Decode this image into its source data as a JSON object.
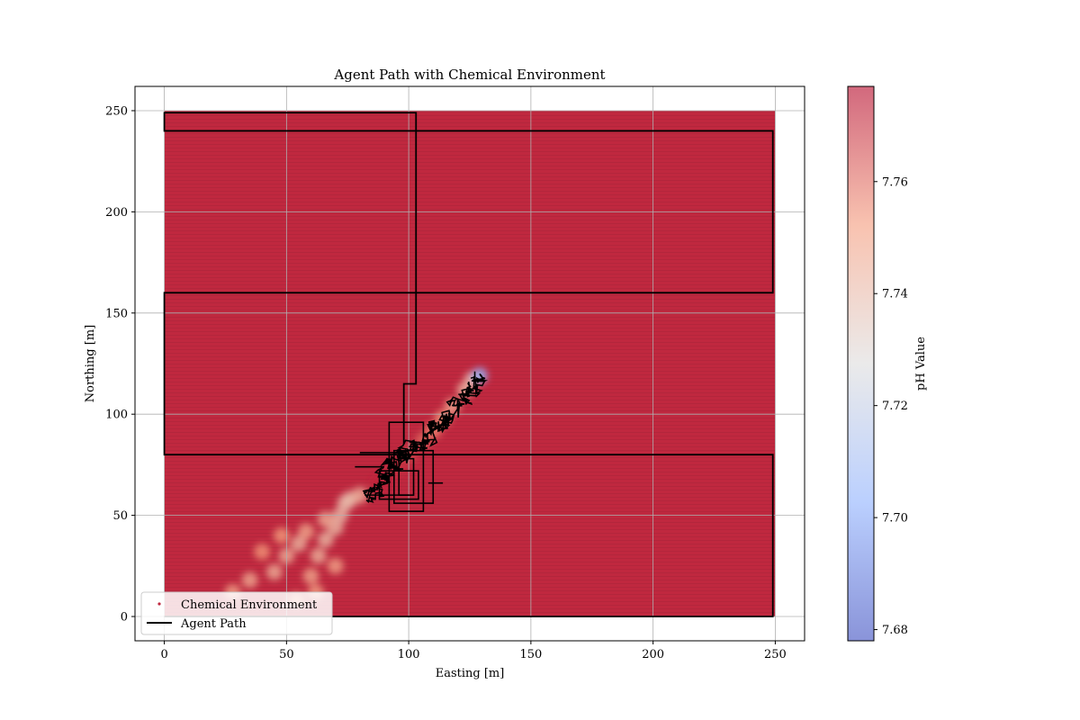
{
  "chart_data": {
    "type": "scatter",
    "title": "Agent Path with Chemical Environment",
    "xlabel": "Easting [m]",
    "ylabel": "Northing [m]",
    "xlim": [
      -12,
      262
    ],
    "ylim": [
      -12,
      262
    ],
    "x_ticks": [
      0,
      50,
      100,
      150,
      200,
      250
    ],
    "y_ticks": [
      0,
      50,
      100,
      150,
      200,
      250
    ],
    "grid": true,
    "legend_placement": "lower-left",
    "colorbar": {
      "label": "pH Value",
      "range": [
        7.678,
        7.777
      ],
      "ticks": [
        7.68,
        7.7,
        7.72,
        7.74,
        7.76
      ],
      "tick_labels": [
        "7.68",
        "7.70",
        "7.72",
        "7.74",
        "7.76"
      ],
      "colormap": "coolwarm",
      "alpha": 0.6
    },
    "background_ph": 7.776,
    "background_color": "#c0283f",
    "plume_color": "#e8b8a0",
    "series": [
      {
        "name": "Chemical Environment",
        "kind": "scatter",
        "extent": {
          "x": [
            0,
            250
          ],
          "y": [
            0,
            250
          ]
        },
        "plume_points": [
          [
            28,
            12,
            7.749
          ],
          [
            35,
            18,
            7.747
          ],
          [
            45,
            22,
            7.745
          ],
          [
            50,
            30,
            7.745
          ],
          [
            55,
            36,
            7.743
          ],
          [
            60,
            20,
            7.748
          ],
          [
            63,
            30,
            7.744
          ],
          [
            66,
            38,
            7.742
          ],
          [
            70,
            44,
            7.742
          ],
          [
            72,
            50,
            7.741
          ],
          [
            74,
            56,
            7.74
          ],
          [
            76,
            58,
            7.74
          ],
          [
            66,
            48,
            7.745
          ],
          [
            58,
            42,
            7.748
          ],
          [
            62,
            12,
            7.75
          ],
          [
            54,
            8,
            7.751
          ],
          [
            80,
            60,
            7.744
          ],
          [
            70,
            25,
            7.749
          ],
          [
            48,
            40,
            7.752
          ],
          [
            40,
            32,
            7.753
          ],
          [
            126,
            117,
            7.738
          ],
          [
            123,
            112,
            7.742
          ],
          [
            118,
            104,
            7.747
          ],
          [
            114,
            98,
            7.751
          ],
          [
            110,
            92,
            7.755
          ],
          [
            106,
            87,
            7.76
          ],
          [
            100,
            80,
            7.765
          ],
          [
            95,
            74,
            7.769
          ],
          [
            88,
            66,
            7.772
          ],
          [
            129,
            119,
            7.705
          ]
        ]
      },
      {
        "name": "Agent Path",
        "kind": "line",
        "color": "#000000",
        "lawnmower": [
          [
            0,
            0
          ],
          [
            249,
            0
          ],
          [
            249,
            80
          ],
          [
            0,
            80
          ],
          [
            0,
            160
          ],
          [
            249,
            160
          ],
          [
            249,
            240
          ],
          [
            0,
            240
          ],
          [
            0,
            249
          ],
          [
            103,
            249
          ],
          [
            103,
            115
          ],
          [
            98,
            115
          ],
          [
            98,
            85
          ]
        ],
        "boxes": [
          [
            92,
            52,
            106,
            96
          ],
          [
            94,
            56,
            110,
            82
          ],
          [
            88,
            58,
            104,
            72
          ],
          [
            96,
            60,
            102,
            78
          ]
        ],
        "walk_centers": [
          [
            86,
            60
          ],
          [
            90,
            68
          ],
          [
            94,
            74
          ],
          [
            98,
            80
          ],
          [
            102,
            84
          ],
          [
            108,
            88
          ],
          [
            112,
            94
          ],
          [
            116,
            98
          ],
          [
            120,
            104
          ],
          [
            124,
            110
          ],
          [
            127,
            116
          ]
        ]
      }
    ]
  }
}
